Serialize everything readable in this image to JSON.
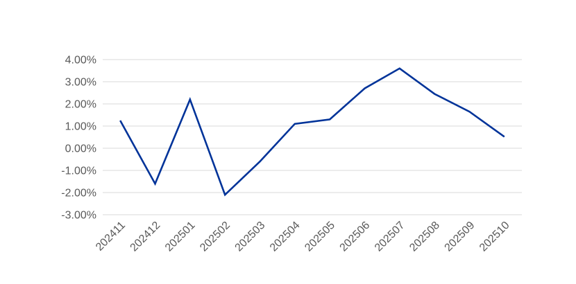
{
  "chart_data": {
    "type": "line",
    "title": "",
    "xlabel": "",
    "ylabel": "",
    "categories": [
      "202411",
      "202412",
      "202501",
      "202502",
      "202503",
      "202504",
      "202505",
      "202506",
      "202507",
      "202508",
      "202509",
      "202510"
    ],
    "series": [
      {
        "values": [
          1.25,
          -1.6,
          2.2,
          -2.1,
          -0.6,
          1.1,
          1.3,
          2.7,
          3.6,
          2.45,
          1.65,
          0.52
        ]
      }
    ],
    "ylim": [
      -3,
      4
    ],
    "yticks": [
      4,
      3,
      2,
      1,
      0,
      -1,
      -2,
      -3
    ],
    "ytick_labels": [
      "4.00%",
      "3.00%",
      "2.00%",
      "1.00%",
      "0.00%",
      "-1.00%",
      "-2.00%",
      "-3.00%"
    ],
    "grid": true,
    "legend": "none",
    "colors": {
      "series": "#003399",
      "grid": "#d9d9d9",
      "text": "#595959"
    }
  }
}
